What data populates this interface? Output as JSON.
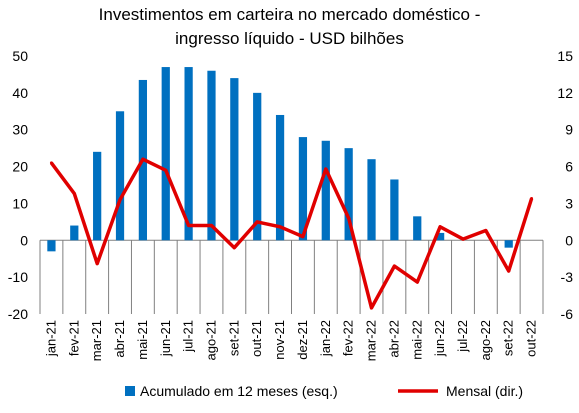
{
  "chart_data": {
    "type": "bar+line",
    "title_line1": "Investimentos em carteira no mercado doméstico -",
    "title_line2": "ingresso líquido - USD bilhões",
    "categories": [
      "jan-21",
      "fev-21",
      "mar-21",
      "abr-21",
      "mai-21",
      "jun-21",
      "jul-21",
      "ago-21",
      "set-21",
      "out-21",
      "nov-21",
      "dez-21",
      "jan-22",
      "fev-22",
      "mar-22",
      "abr-22",
      "mai-22",
      "jun-22",
      "jul-22",
      "ago-22",
      "set-22",
      "out-22"
    ],
    "series": [
      {
        "name": "Acumulado em 12 meses (esq.)",
        "type": "bar",
        "axis": "left",
        "color": "#0070C0",
        "values": [
          -3,
          4,
          24,
          35,
          43.5,
          47,
          47,
          46,
          44,
          40,
          34,
          28,
          27,
          25,
          22,
          16.5,
          6.5,
          2,
          null,
          null,
          -2,
          null
        ]
      },
      {
        "name": "Mensal (dir.)",
        "type": "line",
        "axis": "right",
        "color": "#E00000",
        "values": [
          6.3,
          3.8,
          -1.9,
          3.3,
          6.6,
          5.7,
          1.2,
          1.2,
          -0.6,
          1.5,
          1.1,
          0.3,
          5.8,
          1.8,
          -5.5,
          -2.1,
          -3.4,
          1.1,
          0.1,
          0.8,
          -2.5,
          3.4
        ]
      }
    ],
    "y_left": {
      "min": -20,
      "max": 50,
      "ticks": [
        50,
        40,
        30,
        20,
        10,
        0,
        -10,
        -20
      ]
    },
    "y_right": {
      "min": -6,
      "max": 15,
      "ticks": [
        15,
        12,
        9,
        6,
        3,
        0,
        -3,
        -6
      ]
    },
    "grid": false,
    "legend_position": "bottom"
  }
}
